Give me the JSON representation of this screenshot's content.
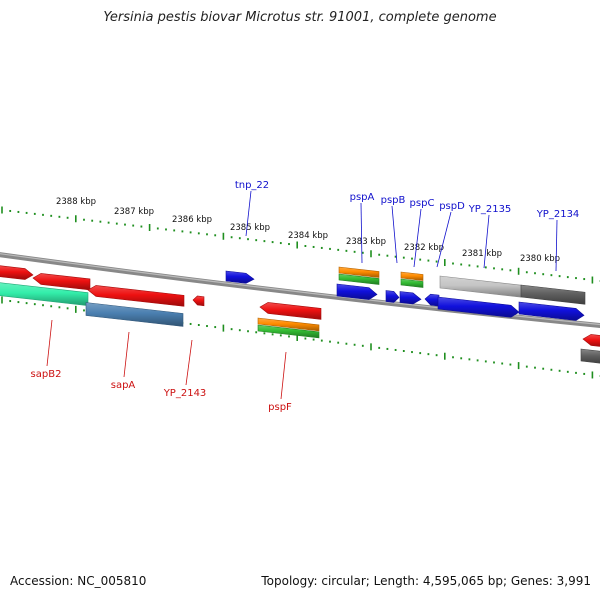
{
  "title": "Yersinia pestis biovar Microtus str. 91001, complete genome",
  "footer": {
    "accession": "Accession: NC_005810",
    "summary": "Topology: circular; Length: 4,595,065 bp; Genes: 3,991"
  },
  "colors": {
    "backbone": "#888888",
    "tick": "#1f8f1f",
    "label_top": "#1010cc",
    "label_bottom": "#cc1010",
    "gene_red": "#ee1111",
    "gene_blue": "#1111dd",
    "gene_orange": "#ff8c00",
    "gene_green": "#33bb33",
    "gene_cyan": "#33eeaa",
    "gene_steel": "#4a7fb0",
    "gene_lightgray": "#c4c4c4",
    "gene_darkgray": "#606060"
  },
  "kbp_labels": [
    "2388 kbp",
    "2387 kbp",
    "2386 kbp",
    "2385 kbp",
    "2384 kbp",
    "2383 kbp",
    "2382 kbp",
    "2381 kbp",
    "2380 kbp"
  ],
  "top_gene_labels": [
    "tnp_22",
    "pspA",
    "pspB",
    "pspC",
    "pspD",
    "YP_2135",
    "YP_2134"
  ],
  "bottom_gene_labels": [
    "sapB2",
    "sapA",
    "YP_2143",
    "pspF"
  ]
}
